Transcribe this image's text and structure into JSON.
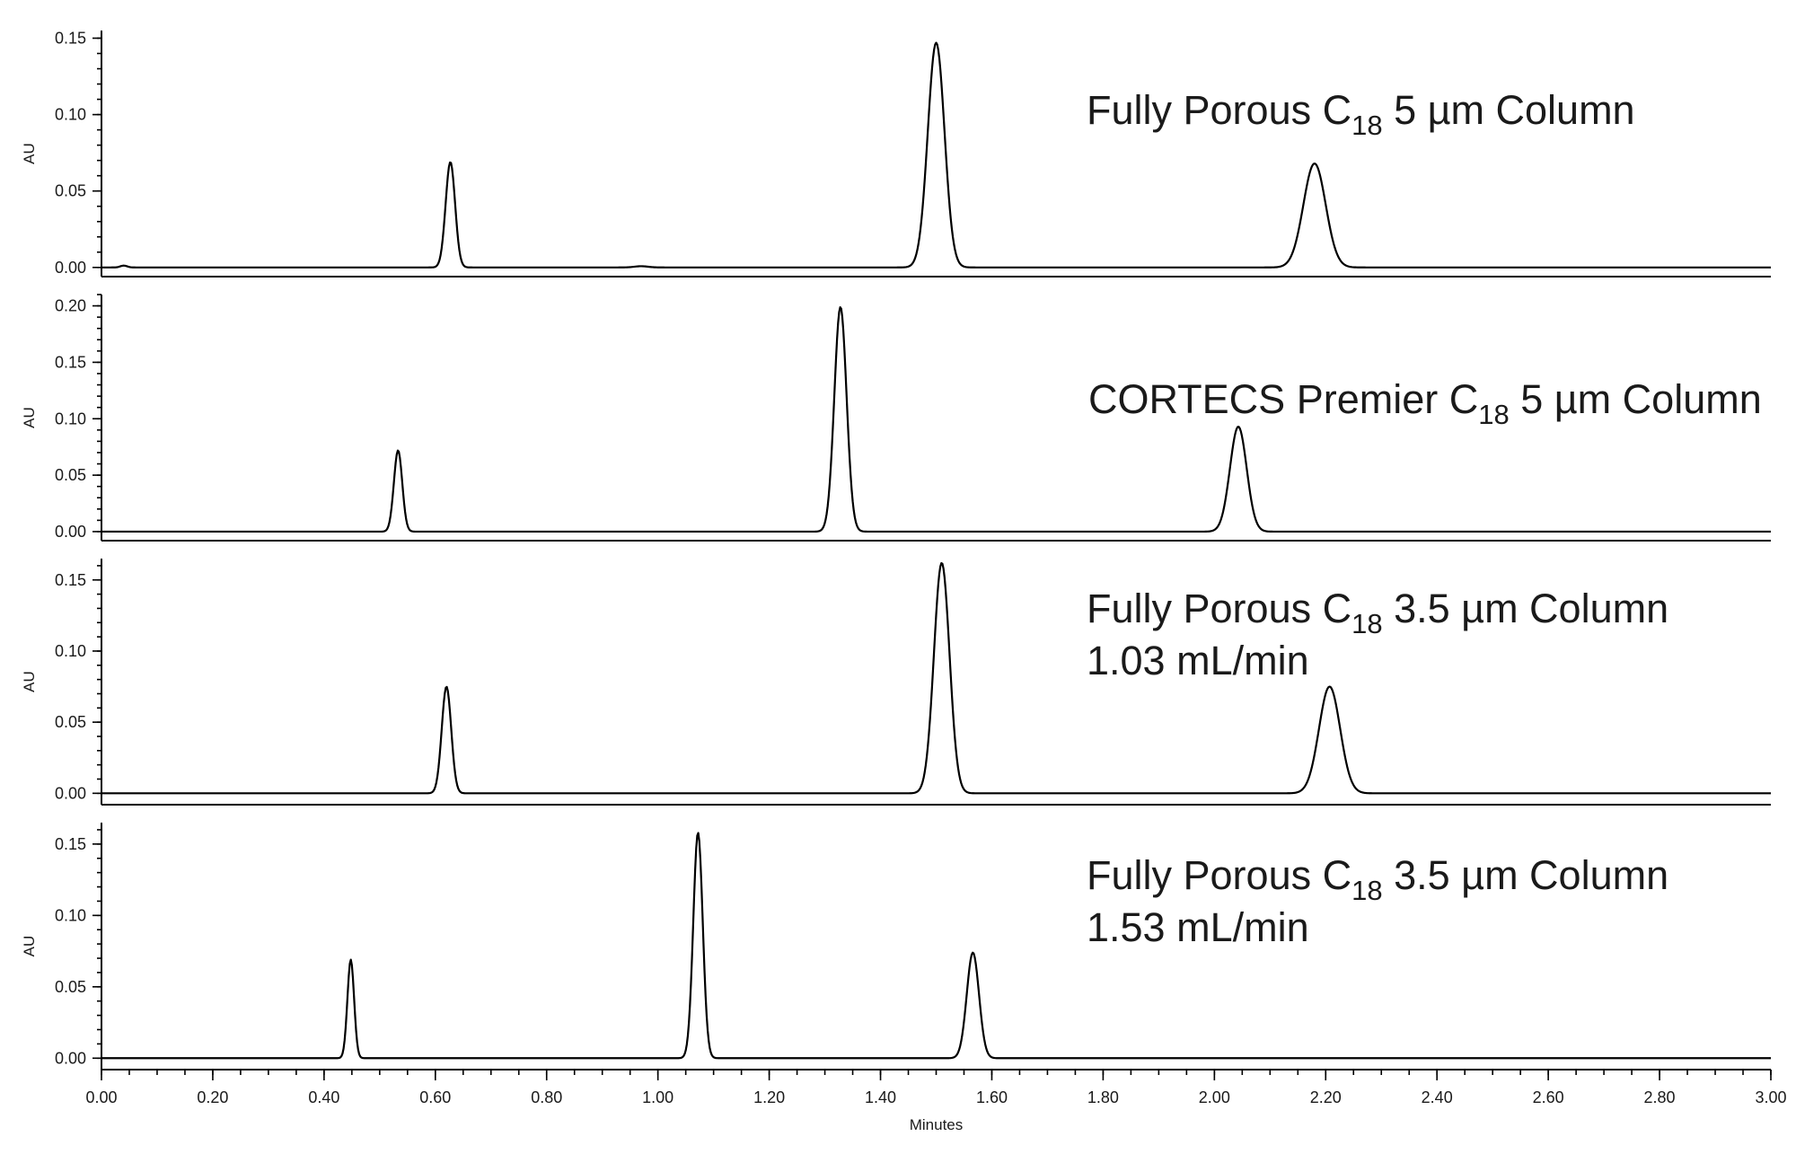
{
  "chart_data": [
    {
      "type": "line",
      "title": "",
      "label": {
        "prefix": "Fully Porous C",
        "sub": "18",
        "suffix": " 5 µm Column",
        "line2": ""
      },
      "ylabel": "AU",
      "xlabel": "",
      "xlim": [
        0,
        3
      ],
      "ylim": [
        -0.006,
        0.155
      ],
      "yticks": [
        0.0,
        0.05,
        0.1,
        0.15
      ],
      "ytick_labels": [
        "0.00",
        "0.05",
        "0.10",
        "0.15"
      ],
      "ytick_minor_step": 0.01,
      "baseline_bumps": [
        {
          "t": 0.04,
          "h": 0.0012,
          "w": 0.006
        },
        {
          "t": 0.97,
          "h": 0.0008,
          "w": 0.012
        }
      ],
      "peaks": [
        {
          "rt": 0.627,
          "height": 0.069,
          "width": 0.0085
        },
        {
          "rt": 1.5,
          "height": 0.147,
          "width": 0.015
        },
        {
          "rt": 2.18,
          "height": 0.068,
          "width": 0.02
        }
      ]
    },
    {
      "type": "line",
      "title": "",
      "label": {
        "prefix": "CORTECS Premier C",
        "sub": "18",
        "suffix": " 5 µm Column",
        "line2": ""
      },
      "ylabel": "AU",
      "xlabel": "",
      "xlim": [
        0,
        3
      ],
      "ylim": [
        -0.008,
        0.21
      ],
      "yticks": [
        0.0,
        0.05,
        0.1,
        0.15,
        0.2
      ],
      "ytick_labels": [
        "0.00",
        "0.05",
        "0.10",
        "0.15",
        "0.20"
      ],
      "ytick_minor_step": 0.01,
      "baseline_bumps": [],
      "peaks": [
        {
          "rt": 0.533,
          "height": 0.072,
          "width": 0.0075
        },
        {
          "rt": 1.328,
          "height": 0.199,
          "width": 0.011
        },
        {
          "rt": 2.043,
          "height": 0.093,
          "width": 0.015
        }
      ]
    },
    {
      "type": "line",
      "title": "",
      "label": {
        "prefix": "Fully Porous C",
        "sub": "18",
        "suffix": " 3.5 µm Column",
        "line2": "1.03 mL/min"
      },
      "ylabel": "AU",
      "xlabel": "",
      "xlim": [
        0,
        3
      ],
      "ylim": [
        -0.008,
        0.165
      ],
      "yticks": [
        0.0,
        0.05,
        0.1,
        0.15
      ],
      "ytick_labels": [
        "0.00",
        "0.05",
        "0.10",
        "0.15"
      ],
      "ytick_minor_step": 0.01,
      "baseline_bumps": [],
      "peaks": [
        {
          "rt": 0.62,
          "height": 0.075,
          "width": 0.0085
        },
        {
          "rt": 1.51,
          "height": 0.162,
          "width": 0.014
        },
        {
          "rt": 2.207,
          "height": 0.075,
          "width": 0.019
        }
      ]
    },
    {
      "type": "line",
      "title": "",
      "label": {
        "prefix": "Fully Porous C",
        "sub": "18",
        "suffix": " 3.5 µm Column",
        "line2": "1.53 mL/min"
      },
      "ylabel": "AU",
      "xlabel": "Minutes",
      "xlim": [
        0,
        3
      ],
      "ylim": [
        -0.008,
        0.165
      ],
      "yticks": [
        0.0,
        0.05,
        0.1,
        0.15
      ],
      "ytick_labels": [
        "0.00",
        "0.05",
        "0.10",
        "0.15"
      ],
      "ytick_minor_step": 0.01,
      "xticks": [
        0.0,
        0.2,
        0.4,
        0.6,
        0.8,
        1.0,
        1.2,
        1.4,
        1.6,
        1.8,
        2.0,
        2.2,
        2.4,
        2.6,
        2.8,
        3.0
      ],
      "xtick_labels": [
        "0.00",
        "0.20",
        "0.40",
        "0.60",
        "0.80",
        "1.00",
        "1.20",
        "1.40",
        "1.60",
        "1.80",
        "2.00",
        "2.20",
        "2.40",
        "2.60",
        "2.80",
        "3.00"
      ],
      "xtick_minor_step": 0.05,
      "baseline_bumps": [],
      "peaks": [
        {
          "rt": 0.448,
          "height": 0.069,
          "width": 0.006
        },
        {
          "rt": 1.072,
          "height": 0.158,
          "width": 0.0085
        },
        {
          "rt": 1.566,
          "height": 0.074,
          "width": 0.011
        }
      ]
    }
  ]
}
